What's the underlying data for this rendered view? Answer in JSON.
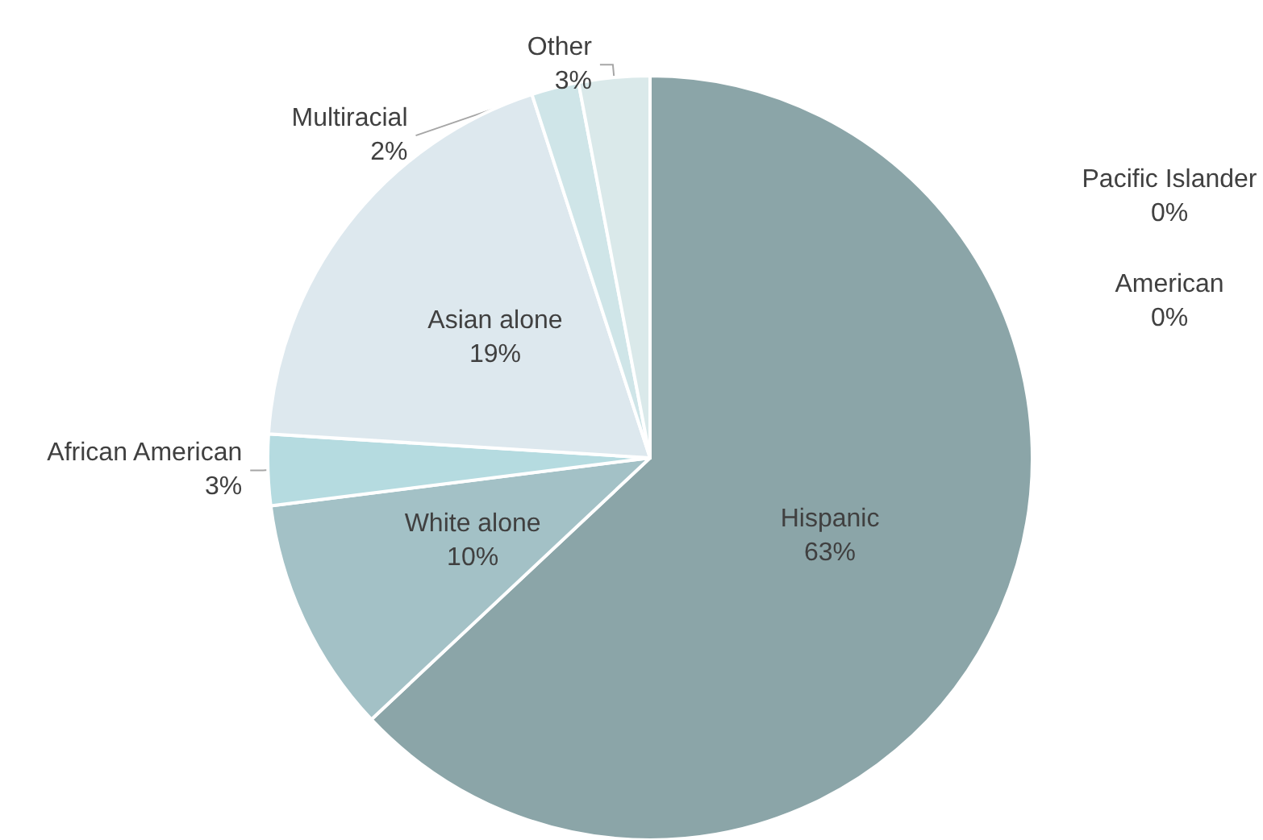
{
  "chart_data": {
    "type": "pie",
    "categories": [
      "Hispanic",
      "White alone",
      "African American",
      "Asian alone",
      "Multiracial",
      "Other",
      "Pacific Islander",
      "American"
    ],
    "values": [
      63,
      10,
      3,
      19,
      2,
      3,
      0,
      0
    ],
    "value_labels": [
      "63%",
      "10%",
      "3%",
      "19%",
      "2%",
      "3%",
      "0%",
      "0%"
    ],
    "colors": [
      "#8ba5a8",
      "#a3c1c6",
      "#b5dbe0",
      "#dde8ee",
      "#cfe5e8",
      "#dae9ea",
      "#c8dde0",
      "#c0d6da"
    ],
    "legend": false
  }
}
